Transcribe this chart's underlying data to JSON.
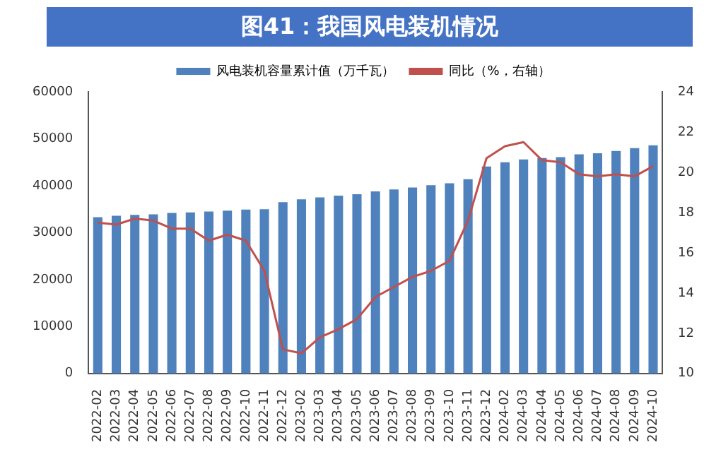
{
  "chart_data": {
    "type": "bar",
    "title": "图41：我国风电装机情况",
    "categories": [
      "2022-02",
      "2022-03",
      "2022-04",
      "2022-05",
      "2022-06",
      "2022-07",
      "2022-08",
      "2022-09",
      "2022-10",
      "2022-11",
      "2022-12",
      "2023-02",
      "2023-03",
      "2023-04",
      "2023-05",
      "2023-06",
      "2023-07",
      "2023-08",
      "2023-09",
      "2023-10",
      "2023-11",
      "2023-12",
      "2024-02",
      "2024-03",
      "2024-04",
      "2024-05",
      "2024-06",
      "2024-07",
      "2024-08",
      "2024-09",
      "2024-10"
    ],
    "series": [
      {
        "name": "风电装机容量累计值（万千瓦）",
        "color": "#4f81bd",
        "values": [
          33300,
          33600,
          33800,
          33900,
          34200,
          34300,
          34500,
          34700,
          34900,
          35000,
          36500,
          37100,
          37500,
          37900,
          38200,
          38800,
          39200,
          39600,
          40100,
          40500,
          41400,
          44100,
          45000,
          45600,
          45900,
          46100,
          46700,
          46900,
          47400,
          48000,
          48600
        ]
      },
      {
        "name": "同比（%，右轴）",
        "type": "line",
        "axis": "y2",
        "color": "#c0504d",
        "values": [
          17.5,
          17.4,
          17.7,
          17.6,
          17.2,
          17.2,
          16.6,
          16.9,
          16.6,
          15.1,
          11.2,
          11.0,
          11.8,
          12.2,
          12.7,
          13.8,
          14.3,
          14.8,
          15.1,
          15.6,
          17.6,
          20.7,
          21.3,
          21.5,
          20.6,
          20.5,
          19.9,
          19.8,
          19.9,
          19.8,
          20.3
        ]
      }
    ],
    "ylim": [
      0,
      60000
    ],
    "yticks": [
      0,
      10000,
      20000,
      30000,
      40000,
      50000,
      60000
    ],
    "y2lim": [
      10,
      24
    ],
    "y2ticks": [
      10,
      12,
      14,
      16,
      18,
      20,
      22,
      24
    ],
    "legend": "top",
    "grid": false,
    "marker": "none",
    "line_style": "solid"
  }
}
